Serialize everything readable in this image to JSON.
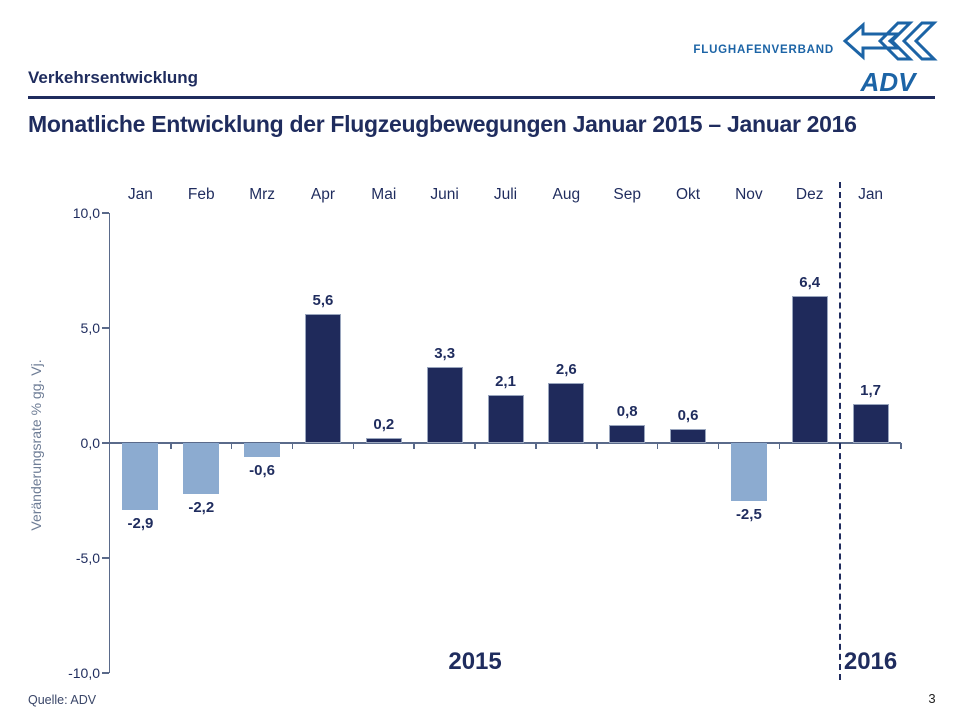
{
  "header": {
    "section": "Verkehrsentwicklung",
    "title": "Monatliche Entwicklung der Flugzeugbewegungen Januar 2015 – Januar 2016"
  },
  "logo": {
    "org": "FLUGHAFENVERBAND",
    "abbr": "ADV",
    "color": "#1C64A6"
  },
  "footer": {
    "source": "Quelle: ADV",
    "page": "3"
  },
  "chart_data": {
    "type": "bar",
    "categories": [
      "Jan",
      "Feb",
      "Mrz",
      "Apr",
      "Mai",
      "Juni",
      "Juli",
      "Aug",
      "Sep",
      "Okt",
      "Nov",
      "Dez",
      "Jan"
    ],
    "values": [
      -2.9,
      -2.2,
      -0.6,
      5.6,
      0.2,
      3.3,
      2.1,
      2.6,
      0.8,
      0.6,
      -2.5,
      6.4,
      1.7
    ],
    "value_labels": [
      "-2,9",
      "-2,2",
      "-0,6",
      "5,6",
      "0,2",
      "3,3",
      "2,1",
      "2,6",
      "0,8",
      "0,6",
      "-2,5",
      "6,4",
      "1,7"
    ],
    "ylabel": "Veränderungsrate % gg. Vj.",
    "ytick_values": [
      10,
      5,
      0,
      -5,
      -10
    ],
    "ytick_labels": [
      "10,0",
      "5,0",
      "0,0",
      "-5,0",
      "-10,0"
    ],
    "ylim": [
      -10,
      10
    ],
    "group_labels": [
      "2015",
      "2016"
    ],
    "separator_after_index": 11,
    "legend": "none",
    "grid": "off",
    "colors": {
      "positive_bar": "#1F2A5B",
      "negative_bar": "#8CABD0",
      "axis": "#5A6A8A",
      "text_navy": "#1F2C5E"
    }
  }
}
